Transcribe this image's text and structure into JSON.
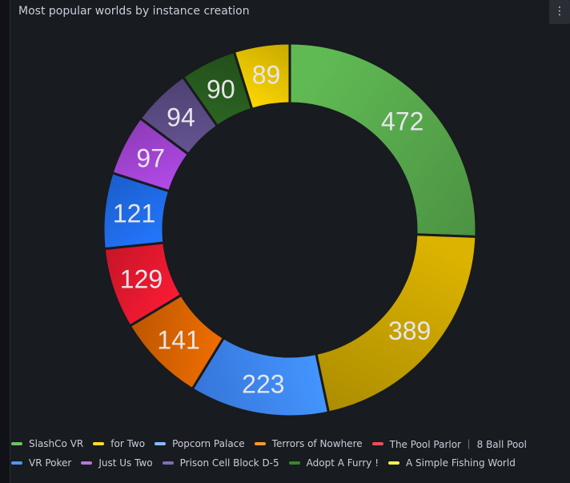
{
  "panel": {
    "title": "Most popular worlds by instance creation",
    "menu_icon": "vertical-ellipsis-icon"
  },
  "chart_data": {
    "type": "pie",
    "variant": "donut",
    "title": "Most popular worlds by instance creation",
    "legend_position": "bottom",
    "slices": [
      {
        "label": "SlashCo VR",
        "value": 472,
        "color": "#56a64b",
        "legend_color": "#73bf69"
      },
      {
        "label": "for Two",
        "value": 389,
        "color": "#c4a000",
        "legend_color": "#fade2a"
      },
      {
        "label": "Popcorn Palace",
        "value": 223,
        "color": "#3d85f5",
        "legend_color": "#8ab8ff"
      },
      {
        "label": "Terrors of Nowhere",
        "value": 141,
        "color": "#d66200",
        "legend_color": "#ff9830"
      },
      {
        "label": "The Pool Parlor ｜ 8 Ball Pool",
        "value": 129,
        "color": "#e0182e",
        "legend_color": "#f2495c"
      },
      {
        "label": "VR Poker",
        "value": 121,
        "color": "#1f6ae6",
        "legend_color": "#5794f2"
      },
      {
        "label": "Just Us Two",
        "value": 97,
        "color": "#a043d0",
        "legend_color": "#b877d9"
      },
      {
        "label": "Prison Cell Block D-5",
        "value": 94,
        "color": "#5a4a82",
        "legend_color": "#806eb7"
      },
      {
        "label": "Adopt A Furry !",
        "value": 90,
        "color": "#275a1e",
        "legend_color": "#37872d"
      },
      {
        "label": "A Simple Fishing World",
        "value": 89,
        "color": "#e3c000",
        "legend_color": "#ffee52"
      }
    ]
  },
  "legend": {
    "rows": [
      [
        0,
        1,
        2,
        3,
        4
      ],
      [
        5,
        6,
        7,
        8,
        9
      ]
    ]
  }
}
